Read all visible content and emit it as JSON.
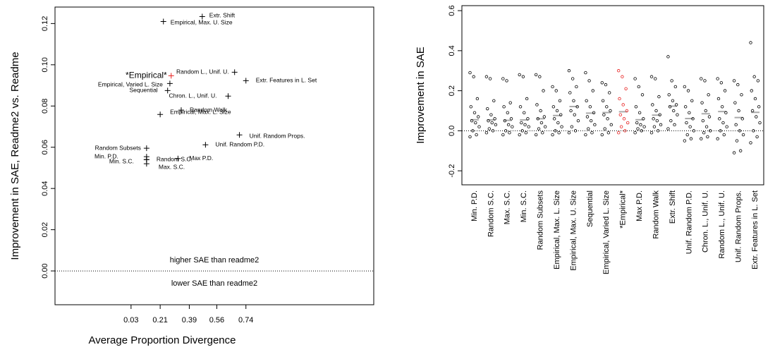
{
  "chart_data": [
    {
      "type": "scatter",
      "ylabel": "Improvement in SAE, Readme2 vs. Readme",
      "xlabel": "Average Proportion Divergence",
      "annotations": [
        "higher SAE than readme2",
        "lower SAE than readme2"
      ],
      "xlim": [
        -0.44,
        1.53
      ],
      "xticks": [
        0.03,
        0.21,
        0.39,
        0.56,
        0.74
      ],
      "ylim": [
        -0.0164,
        0.128
      ],
      "yticks": [
        {
          "value": 0,
          "label": "0.00"
        },
        {
          "value": 0.02,
          "label": "0.02"
        },
        {
          "value": 0.04,
          "label": "0.04"
        },
        {
          "value": 0.06,
          "label": "0.06"
        },
        {
          "value": 0.08,
          "label": "0.08"
        },
        {
          "value": 0.1,
          "label": "0.10"
        },
        {
          "value": 0.12,
          "label": "0.12"
        }
      ],
      "labels": [
        "Extr. Shift",
        "Empirical, Max. U. Size",
        "*Empirical*",
        "Random L., Unif. U.",
        "Extr. Features in L. Set",
        "Empirical, Varied L. Size",
        "Sequential",
        "Chron. L., Unif. U.",
        "Random Walk",
        "Empirical, Max. L. Size",
        "Unif. Random Props.",
        "Unif. Random P.D.",
        "Random Subsets",
        "Min. P.D.",
        "Min. S.C.",
        "Max. S.C.",
        "Random S.C.",
        "Max P.D."
      ],
      "x": [
        0.47,
        0.23,
        0.278,
        0.67,
        0.74,
        0.27,
        0.256,
        0.63,
        0.34,
        0.21,
        0.7,
        0.49,
        0.126,
        0.126,
        0.126,
        0.126,
        0.126,
        0.32
      ],
      "values": [
        0.1234,
        0.121,
        0.0947,
        0.0964,
        0.0923,
        0.0909,
        0.0875,
        0.0848,
        0.078,
        0.0759,
        0.066,
        0.0612,
        0.0595,
        0.0554,
        0.054,
        0.052,
        0.054,
        0.0545
      ],
      "colors": [
        "#000",
        "#000",
        "#e8201f",
        "#000",
        "#000",
        "#000",
        "#000",
        "#000",
        "#000",
        "#000",
        "#000",
        "#000",
        "#000",
        "#000",
        "#000",
        "#000",
        "#000",
        "#000"
      ]
    },
    {
      "type": "strip",
      "ylabel": "Improvement in SAE",
      "ylim": [
        -0.27,
        0.625
      ],
      "yticks": [
        {
          "value": -0.2,
          "label": "-0.2"
        },
        {
          "value": 0,
          "label": "0.0"
        },
        {
          "value": 0.2,
          "label": "0.2"
        },
        {
          "value": 0.4,
          "label": "0.4"
        },
        {
          "value": 0.6,
          "label": "0.6"
        }
      ],
      "categories": [
        "Min. P.D.",
        "Random S.C.",
        "Max. S.C.",
        "Min. S.C.",
        "Random Subsets",
        "Empirical, Max. L. Size",
        "Empirical, Max. U. Size",
        "Sequential",
        "Empirical, Varied L. Size",
        "*Empirical*",
        "Max P.D.",
        "Random Walk",
        "Extr. Shift",
        "Unif. Random P.D.",
        "Chron. L., Unif. U.",
        "Random L., Unif. U.",
        "Unif. Random Props.",
        "Extr. Features in L. Set"
      ],
      "colors": [
        "#000",
        "#000",
        "#000",
        "#000",
        "#000",
        "#000",
        "#000",
        "#000",
        "#000",
        "#e8201f",
        "#000",
        "#000",
        "#000",
        "#000",
        "#000",
        "#000",
        "#000",
        "#000"
      ],
      "means": [
        0.055,
        0.054,
        0.052,
        0.054,
        0.06,
        0.076,
        0.121,
        0.088,
        0.091,
        0.095,
        0.055,
        0.078,
        0.123,
        0.061,
        0.085,
        0.096,
        0.066,
        0.092
      ],
      "values": [
        [
          0.29,
          0.27,
          0.16,
          0.12,
          0.09,
          0.07,
          0.05,
          0.04,
          0.02,
          0.0,
          -0.02,
          -0.03
        ],
        [
          0.27,
          0.26,
          0.15,
          0.11,
          0.08,
          0.06,
          0.05,
          0.04,
          0.03,
          0.01,
          0.0,
          -0.01
        ],
        [
          0.26,
          0.25,
          0.14,
          0.12,
          0.09,
          0.06,
          0.05,
          0.03,
          0.02,
          0.0,
          -0.01,
          -0.02
        ],
        [
          0.28,
          0.27,
          0.16,
          0.12,
          0.09,
          0.06,
          0.04,
          0.03,
          0.02,
          0.0,
          -0.01,
          -0.02
        ],
        [
          0.28,
          0.27,
          0.2,
          0.13,
          0.1,
          0.07,
          0.06,
          0.04,
          0.02,
          0.01,
          -0.01,
          -0.02
        ],
        [
          0.22,
          0.2,
          0.15,
          0.12,
          0.1,
          0.08,
          0.06,
          0.04,
          0.02,
          0.0,
          -0.01,
          -0.02
        ],
        [
          0.3,
          0.26,
          0.22,
          0.19,
          0.15,
          0.12,
          0.1,
          0.08,
          0.05,
          0.02,
          0.0,
          -0.01
        ],
        [
          0.29,
          0.25,
          0.2,
          0.15,
          0.12,
          0.09,
          0.07,
          0.05,
          0.03,
          0.01,
          -0.01,
          -0.02
        ],
        [
          0.24,
          0.23,
          0.19,
          0.15,
          0.12,
          0.1,
          0.08,
          0.06,
          0.03,
          0.01,
          -0.01,
          -0.02
        ],
        [
          0.3,
          0.27,
          0.21,
          0.16,
          0.13,
          0.1,
          0.08,
          0.06,
          0.04,
          0.02,
          0.0,
          -0.01
        ],
        [
          0.26,
          0.22,
          0.18,
          0.12,
          0.09,
          0.06,
          0.04,
          0.03,
          0.02,
          0.01,
          0.0,
          -0.01
        ],
        [
          0.27,
          0.26,
          0.17,
          0.13,
          0.1,
          0.08,
          0.06,
          0.05,
          0.03,
          0.02,
          0.0,
          -0.01
        ],
        [
          0.37,
          0.25,
          0.22,
          0.18,
          0.15,
          0.13,
          0.12,
          0.1,
          0.08,
          0.05,
          0.03,
          0.01
        ],
        [
          0.22,
          0.2,
          0.15,
          0.12,
          0.09,
          0.06,
          0.04,
          0.02,
          0.0,
          -0.02,
          -0.04,
          -0.05
        ],
        [
          0.26,
          0.25,
          0.18,
          0.14,
          0.1,
          0.07,
          0.05,
          0.02,
          0.0,
          -0.01,
          -0.03,
          -0.04
        ],
        [
          0.26,
          0.24,
          0.2,
          0.16,
          0.12,
          0.09,
          0.06,
          0.04,
          0.02,
          0.0,
          -0.02,
          -0.04
        ],
        [
          0.25,
          0.23,
          0.18,
          0.14,
          0.1,
          0.06,
          0.03,
          0.0,
          -0.02,
          -0.05,
          -0.1,
          -0.11
        ],
        [
          0.44,
          0.27,
          0.25,
          0.2,
          0.16,
          0.12,
          0.1,
          0.07,
          0.04,
          0.0,
          -0.03,
          -0.06
        ]
      ]
    }
  ]
}
